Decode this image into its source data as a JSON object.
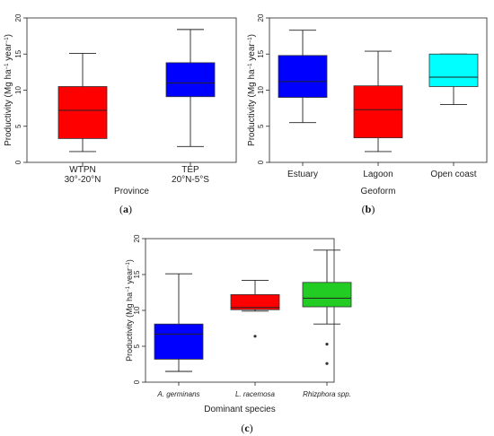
{
  "chart_data": [
    {
      "type": "box",
      "panel_label": "(a)",
      "ylabel": "Productivity (Mg ha⁻¹ year⁻¹)",
      "xlabel": "Province",
      "ylim": [
        0,
        20
      ],
      "yticks": [
        0,
        5,
        10,
        15,
        20
      ],
      "grid": false,
      "categories": [
        "WTPN\n30°-20°N",
        "TEP\n20°N-5°S"
      ],
      "boxes": [
        {
          "min": 1.5,
          "q1": 3.3,
          "median": 7.2,
          "q3": 10.5,
          "max": 15.1,
          "color": "#ff0000",
          "outliers": []
        },
        {
          "min": 2.2,
          "q1": 9.1,
          "median": 11.0,
          "q3": 13.8,
          "max": 18.4,
          "color": "#0000ff",
          "outliers": []
        }
      ]
    },
    {
      "type": "box",
      "panel_label": "(b)",
      "ylabel": "Productivity (Mg ha⁻¹ year⁻¹)",
      "xlabel": "Geoform",
      "ylim": [
        0,
        20
      ],
      "yticks": [
        0,
        5,
        10,
        15,
        20
      ],
      "grid": false,
      "categories": [
        "Estuary",
        "Lagoon",
        "Open coast"
      ],
      "boxes": [
        {
          "min": 5.5,
          "q1": 9.0,
          "median": 11.2,
          "q3": 14.8,
          "max": 18.3,
          "color": "#0000ff",
          "outliers": []
        },
        {
          "min": 1.5,
          "q1": 3.4,
          "median": 7.3,
          "q3": 10.6,
          "max": 15.4,
          "color": "#ff0000",
          "outliers": []
        },
        {
          "min": 8.0,
          "q1": 10.5,
          "median": 11.8,
          "q3": 15.0,
          "max": 15.0,
          "color": "#00ffff",
          "outliers": []
        }
      ]
    },
    {
      "type": "box",
      "panel_label": "(c)",
      "ylabel": "Productivity (Mg ha⁻¹ year⁻¹)",
      "xlabel": "Dominant species",
      "ylim": [
        0,
        20
      ],
      "yticks": [
        0,
        5,
        10,
        15,
        20
      ],
      "grid": false,
      "categories": [
        "A. germinans",
        "L. racemosa",
        "Rhizphora spp."
      ],
      "boxes": [
        {
          "min": 1.5,
          "q1": 3.2,
          "median": 6.7,
          "q3": 8.1,
          "max": 15.1,
          "color": "#0000ff",
          "outliers": []
        },
        {
          "min": 9.9,
          "q1": 10.1,
          "median": 10.4,
          "q3": 12.2,
          "max": 14.2,
          "color": "#ff0000",
          "outliers": [
            6.4
          ]
        },
        {
          "min": 8.1,
          "q1": 10.5,
          "median": 11.7,
          "q3": 13.9,
          "max": 18.4,
          "color": "#22cc22",
          "outliers": [
            5.3,
            2.6
          ]
        }
      ]
    }
  ]
}
